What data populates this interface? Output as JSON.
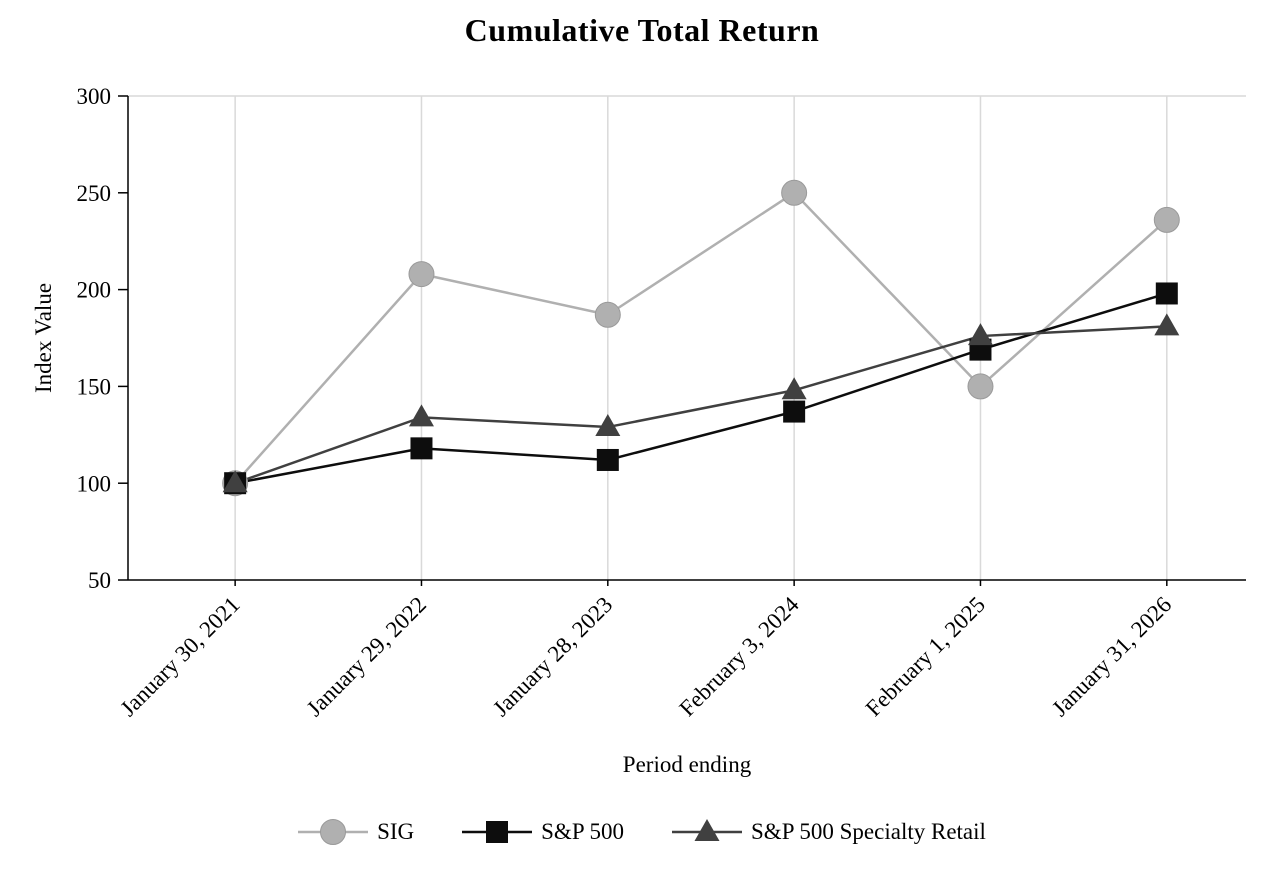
{
  "chart_data": {
    "type": "line",
    "title": "Cumulative Total Return",
    "xlabel": "Period ending",
    "ylabel": "Index Value",
    "categories": [
      "January 30, 2021",
      "January 29, 2022",
      "January 28, 2023",
      "February 3, 2024",
      "February 1, 2025",
      "January 31, 2026"
    ],
    "series": [
      {
        "name": "SIG",
        "marker": "circle",
        "color": "#b0b0b0",
        "values": [
          100,
          208,
          187,
          250,
          150,
          236
        ]
      },
      {
        "name": "S&P 500",
        "marker": "square",
        "color": "#0d0d0d",
        "values": [
          100,
          118,
          112,
          137,
          169,
          198
        ]
      },
      {
        "name": "S&P 500 Specialty Retail",
        "marker": "triangle",
        "color": "#404040",
        "values": [
          100,
          134,
          129,
          148,
          176,
          181
        ]
      }
    ],
    "ylim": [
      50,
      300
    ],
    "yticks": [
      50,
      100,
      150,
      200,
      250,
      300
    ],
    "grid": "vertical",
    "gridline_color": "#d9d9d9",
    "axis_color": "#000000",
    "legend_position": "bottom"
  }
}
